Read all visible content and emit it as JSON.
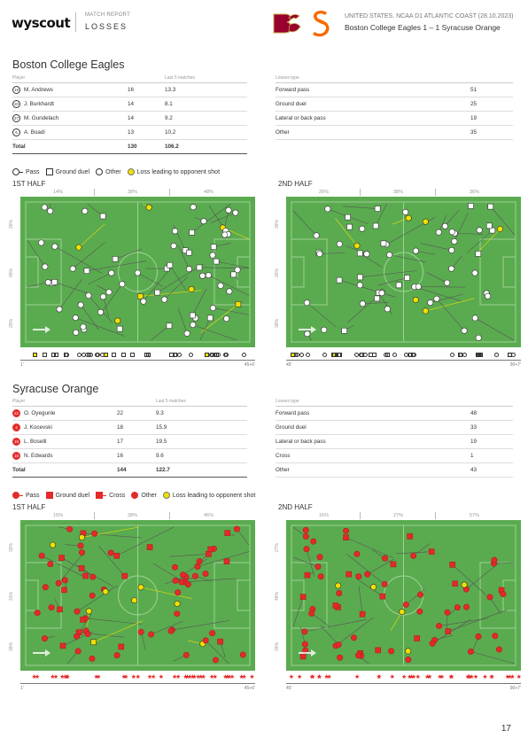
{
  "header": {
    "logo": "wyscout",
    "kicker": "MATCH REPORT",
    "title": "LOSSES",
    "competition": "UNITED STATES. NCAA D1 ATLANTIC COAST (28.10.2023)",
    "match": "Boston College Eagles 1 – 1 Syracuse Orange"
  },
  "colors": {
    "pitch": "#5aab4f",
    "lines": "#9fd196",
    "red": "#e32a2a",
    "yellow": "#f0e000",
    "arrow": "#555555"
  },
  "teams": [
    {
      "name": "Boston College Eagles",
      "players_header": {
        "player": "Player",
        "value": "",
        "last5": "Last 5 matches"
      },
      "players": [
        {
          "num": "19",
          "name": "M. Andrews",
          "value": "16",
          "last5": "13.3"
        },
        {
          "num": "20",
          "name": "J. Burkhardt",
          "value": "14",
          "last5": "8.1"
        },
        {
          "num": "27",
          "name": "M. Gundelach",
          "value": "14",
          "last5": "9.2"
        },
        {
          "num": "5",
          "name": "A. Boadi",
          "value": "13",
          "last5": "10.2"
        }
      ],
      "total": {
        "label": "Total",
        "value": "130",
        "last5": "106.2"
      },
      "losses_header": "Losses type",
      "losses": [
        {
          "type": "Forward pass",
          "value": "51"
        },
        {
          "type": "Ground duel",
          "value": "25"
        },
        {
          "type": "Lateral or back pass",
          "value": "19"
        },
        {
          "type": "Other",
          "value": "35"
        }
      ],
      "legend": [
        {
          "label": "Pass",
          "icon": "circle-with-tail-icon"
        },
        {
          "label": "Ground duel",
          "icon": "square-icon"
        },
        {
          "label": "Other",
          "icon": "circle-icon"
        },
        {
          "label": "Loss leading to opponent shot",
          "icon": "yellow-circle-icon"
        }
      ],
      "halves": [
        {
          "label": "1ST HALF",
          "zones": [
            "14%",
            "38%",
            "48%"
          ],
          "side": [
            "26%",
            "49%",
            "25%"
          ],
          "start": "1'",
          "end": "45+6'"
        },
        {
          "label": "2ND HALF",
          "zones": [
            "26%",
            "38%",
            "36%"
          ],
          "side": [
            "36%",
            "26%",
            "38%"
          ],
          "start": "45'",
          "end": "90+7'"
        }
      ]
    },
    {
      "name": "Syracuse Orange",
      "players_header": {
        "player": "Player",
        "value": "",
        "last5": "Last 5 matches"
      },
      "players": [
        {
          "num": "22",
          "name": "O. Oyegunle",
          "value": "22",
          "last5": "9.3"
        },
        {
          "num": "4",
          "name": "J. Kocevski",
          "value": "18",
          "last5": "15.9"
        },
        {
          "num": "19",
          "name": "L. Boselli",
          "value": "17",
          "last5": "19.5"
        },
        {
          "num": "10",
          "name": "N. Edwards",
          "value": "16",
          "last5": "9.6"
        }
      ],
      "total": {
        "label": "Total",
        "value": "144",
        "last5": "122.7"
      },
      "losses_header": "Losses type",
      "losses": [
        {
          "type": "Forward pass",
          "value": "48"
        },
        {
          "type": "Ground duel",
          "value": "33"
        },
        {
          "type": "Lateral or back pass",
          "value": "19"
        },
        {
          "type": "Cross",
          "value": "1"
        },
        {
          "type": "Other",
          "value": "43"
        }
      ],
      "legend": [
        {
          "label": "Pass",
          "icon": "red-circle-with-tail-icon"
        },
        {
          "label": "Ground duel",
          "icon": "red-square-icon"
        },
        {
          "label": "Cross",
          "icon": "red-square-with-tail-icon"
        },
        {
          "label": "Other",
          "icon": "red-circle-icon"
        },
        {
          "label": "Loss leading to opponent shot",
          "icon": "yellow-circle-icon"
        }
      ],
      "halves": [
        {
          "label": "1ST HALF",
          "zones": [
            "16%",
            "38%",
            "46%"
          ],
          "side": [
            "32%",
            "31%",
            "36%"
          ],
          "start": "1'",
          "end": "45+6'"
        },
        {
          "label": "2ND HALF",
          "zones": [
            "16%",
            "27%",
            "57%"
          ],
          "side": [
            "27%",
            "46%",
            "26%"
          ],
          "start": "45'",
          "end": "90+7'"
        }
      ]
    }
  ],
  "page_number": "17"
}
